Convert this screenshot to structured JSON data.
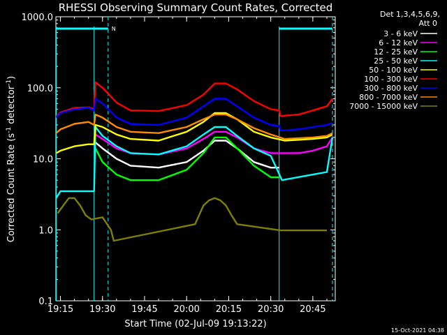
{
  "chart_data": {
    "type": "line",
    "title": "RHESSI Observing Summary Count Rates, Corrected",
    "xlabel": "Start Time (02-Jul-09 19:13:22)",
    "ylabel_main": "Corrected Count Rate (s",
    "ylabel_sup1": "-1",
    "ylabel_mid": " detector",
    "ylabel_sup2": "-1",
    "ylabel_end": ")",
    "yscale": "log",
    "ylim": [
      0.1,
      1000
    ],
    "yticks": [
      "1000.0",
      "100.0",
      "10.0",
      "1.0",
      "0.1"
    ],
    "xlim": [
      "19:13:22",
      "20:53:00"
    ],
    "xticks": [
      "19:15",
      "19:30",
      "19:45",
      "20:00",
      "20:15",
      "20:30",
      "20:45"
    ],
    "grid": false,
    "legend": {
      "header": [
        "Det 1,3,4,5,6,9,",
        "Att 0"
      ],
      "entries": [
        {
          "label": "3 - 6 keV",
          "color": "#ffffff"
        },
        {
          "label": "6 - 12 keV",
          "color": "#ff00ff"
        },
        {
          "label": "12 - 25 keV",
          "color": "#00ff00"
        },
        {
          "label": "25 - 50 keV",
          "color": "#00ffff"
        },
        {
          "label": "50 - 100 keV",
          "color": "#ffff00"
        },
        {
          "label": "100 - 300 keV",
          "color": "#ff0000"
        },
        {
          "label": "300 - 800 keV",
          "color": "#0000ff"
        },
        {
          "label": "800 - 7000 keV",
          "color": "#ff8c00"
        },
        {
          "label": "7000 - 15000 keV",
          "color": "#808000"
        }
      ]
    },
    "annotations": [
      {
        "text": "N",
        "color": "#00ffff",
        "x": "19:32"
      }
    ],
    "markers": {
      "color": "#00ffff",
      "night_bars": [
        [
          "19:13:22",
          "19:32"
        ],
        [
          "20:33",
          "20:52"
        ]
      ],
      "dashed_lines": [
        "19:32",
        "20:52"
      ],
      "solid_lines": [
        "19:13:30",
        "19:27",
        "20:33"
      ]
    },
    "series": [
      {
        "name": "3 - 6 keV",
        "color": "#ffffff",
        "points": [
          [
            "19:27:30",
            17
          ],
          [
            "19:30",
            14
          ],
          [
            "19:35",
            10
          ],
          [
            "19:40",
            8
          ],
          [
            "19:50",
            7.5
          ],
          [
            "20:00",
            9
          ],
          [
            "20:06",
            13
          ],
          [
            "20:10",
            18
          ],
          [
            "20:14",
            18
          ],
          [
            "20:18",
            14
          ],
          [
            "20:24",
            9
          ],
          [
            "20:30",
            7.5
          ],
          [
            "20:33",
            7.5
          ]
        ]
      },
      {
        "name": "6 - 12 keV",
        "color": "#ff00ff",
        "points": [
          [
            "19:27:30",
            22
          ],
          [
            "19:30",
            19
          ],
          [
            "19:35",
            14
          ],
          [
            "19:40",
            12
          ],
          [
            "19:50",
            11.5
          ],
          [
            "20:00",
            14
          ],
          [
            "20:06",
            19
          ],
          [
            "20:10",
            24
          ],
          [
            "20:14",
            24
          ],
          [
            "20:18",
            20
          ],
          [
            "20:24",
            14
          ],
          [
            "20:30",
            12
          ],
          [
            "20:40",
            12
          ],
          [
            "20:45",
            13
          ],
          [
            "20:50",
            15
          ],
          [
            "20:52",
            20
          ]
        ]
      },
      {
        "name": "12 - 25 keV",
        "color": "#00ff00",
        "points": [
          [
            "19:27:30",
            14
          ],
          [
            "19:30",
            9
          ],
          [
            "19:35",
            6
          ],
          [
            "19:40",
            5
          ],
          [
            "19:50",
            5
          ],
          [
            "20:00",
            7
          ],
          [
            "20:06",
            12
          ],
          [
            "20:10",
            20
          ],
          [
            "20:14",
            20
          ],
          [
            "20:18",
            14
          ],
          [
            "20:24",
            8
          ],
          [
            "20:30",
            5.5
          ],
          [
            "20:33",
            5.5
          ]
        ]
      },
      {
        "name": "25 - 50 keV",
        "color": "#00ffff",
        "points": [
          [
            "19:13:30",
            2.8
          ],
          [
            "19:15",
            3.5
          ],
          [
            "19:20",
            3.5
          ],
          [
            "19:25",
            3.5
          ],
          [
            "19:27",
            3.5
          ],
          [
            "19:27:30",
            28
          ],
          [
            "19:30",
            21
          ],
          [
            "19:35",
            15
          ],
          [
            "19:40",
            12
          ],
          [
            "19:50",
            11.5
          ],
          [
            "20:00",
            15
          ],
          [
            "20:06",
            22
          ],
          [
            "20:10",
            28
          ],
          [
            "20:14",
            28
          ],
          [
            "20:18",
            21
          ],
          [
            "20:24",
            14
          ],
          [
            "20:30",
            11
          ],
          [
            "20:34",
            5
          ],
          [
            "20:45",
            6
          ],
          [
            "20:50",
            6.5
          ],
          [
            "20:52",
            20
          ]
        ]
      },
      {
        "name": "50 - 100 keV",
        "color": "#ffff00",
        "points": [
          [
            "19:13:30",
            12
          ],
          [
            "19:15",
            13
          ],
          [
            "19:20",
            15
          ],
          [
            "19:25",
            16
          ],
          [
            "19:27",
            16
          ],
          [
            "19:27:30",
            30
          ],
          [
            "19:30",
            28
          ],
          [
            "19:35",
            22
          ],
          [
            "19:40",
            19
          ],
          [
            "19:50",
            18
          ],
          [
            "20:00",
            24
          ],
          [
            "20:06",
            33
          ],
          [
            "20:10",
            44
          ],
          [
            "20:14",
            44
          ],
          [
            "20:18",
            36
          ],
          [
            "20:24",
            24
          ],
          [
            "20:30",
            20
          ],
          [
            "20:35",
            18
          ],
          [
            "20:45",
            19
          ],
          [
            "20:50",
            20
          ],
          [
            "20:52",
            22
          ]
        ]
      },
      {
        "name": "100 - 300 keV",
        "color": "#ff0000",
        "points": [
          [
            "19:13:30",
            40
          ],
          [
            "19:15",
            45
          ],
          [
            "19:20",
            52
          ],
          [
            "19:25",
            53
          ],
          [
            "19:27",
            50
          ],
          [
            "19:27:30",
            120
          ],
          [
            "19:30",
            100
          ],
          [
            "19:35",
            62
          ],
          [
            "19:40",
            48
          ],
          [
            "19:50",
            47
          ],
          [
            "20:00",
            57
          ],
          [
            "20:06",
            80
          ],
          [
            "20:10",
            115
          ],
          [
            "20:14",
            115
          ],
          [
            "20:18",
            95
          ],
          [
            "20:24",
            65
          ],
          [
            "20:30",
            50
          ],
          [
            "20:33",
            48
          ],
          [
            "20:33:30",
            40
          ],
          [
            "20:40",
            42
          ],
          [
            "20:45",
            48
          ],
          [
            "20:50",
            55
          ],
          [
            "20:52",
            70
          ]
        ]
      },
      {
        "name": "300 - 800 keV",
        "color": "#0000ff",
        "points": [
          [
            "19:13:30",
            38
          ],
          [
            "19:15",
            44
          ],
          [
            "19:20",
            50
          ],
          [
            "19:25",
            52
          ],
          [
            "19:27",
            48
          ],
          [
            "19:27:30",
            70
          ],
          [
            "19:30",
            60
          ],
          [
            "19:35",
            38
          ],
          [
            "19:40",
            31
          ],
          [
            "19:50",
            30
          ],
          [
            "20:00",
            38
          ],
          [
            "20:06",
            55
          ],
          [
            "20:10",
            70
          ],
          [
            "20:14",
            70
          ],
          [
            "20:18",
            55
          ],
          [
            "20:24",
            38
          ],
          [
            "20:30",
            30
          ],
          [
            "20:33",
            29
          ],
          [
            "20:33:30",
            25
          ],
          [
            "20:40",
            26
          ],
          [
            "20:45",
            28
          ],
          [
            "20:50",
            30
          ],
          [
            "20:52",
            32
          ]
        ]
      },
      {
        "name": "800 - 7000 keV",
        "color": "#ff8c00",
        "points": [
          [
            "19:13:30",
            23
          ],
          [
            "19:15",
            26
          ],
          [
            "19:20",
            31
          ],
          [
            "19:25",
            33
          ],
          [
            "19:27",
            30
          ],
          [
            "19:27:30",
            42
          ],
          [
            "19:30",
            38
          ],
          [
            "19:35",
            28
          ],
          [
            "19:40",
            24
          ],
          [
            "19:50",
            23
          ],
          [
            "20:00",
            28
          ],
          [
            "20:06",
            36
          ],
          [
            "20:10",
            42
          ],
          [
            "20:14",
            42
          ],
          [
            "20:18",
            36
          ],
          [
            "20:24",
            27
          ],
          [
            "20:30",
            22
          ],
          [
            "20:35",
            19
          ],
          [
            "20:45",
            20
          ],
          [
            "20:50",
            21
          ],
          [
            "20:52",
            23
          ]
        ]
      },
      {
        "name": "7000 - 15000 keV",
        "color": "#808000",
        "points": [
          [
            "19:14",
            1.7
          ],
          [
            "19:16",
            2.2
          ],
          [
            "19:18",
            2.8
          ],
          [
            "19:20",
            2.8
          ],
          [
            "19:22",
            2.2
          ],
          [
            "19:24",
            1.6
          ],
          [
            "19:26",
            1.4
          ],
          [
            "19:30",
            1.5
          ],
          [
            "19:33",
            1.0
          ],
          [
            "19:34",
            0.7
          ],
          [
            "20:03",
            1.2
          ],
          [
            "20:06",
            2.2
          ],
          [
            "20:08",
            2.6
          ],
          [
            "20:10",
            2.8
          ],
          [
            "20:12",
            2.6
          ],
          [
            "20:14",
            2.2
          ],
          [
            "20:16",
            1.6
          ],
          [
            "20:18",
            1.2
          ],
          [
            "20:33:30",
            0.98
          ],
          [
            "20:45",
            0.98
          ],
          [
            "20:50",
            0.98
          ]
        ]
      }
    ]
  },
  "footer": {
    "date_stamp": "15-Oct-2021 04:38"
  }
}
